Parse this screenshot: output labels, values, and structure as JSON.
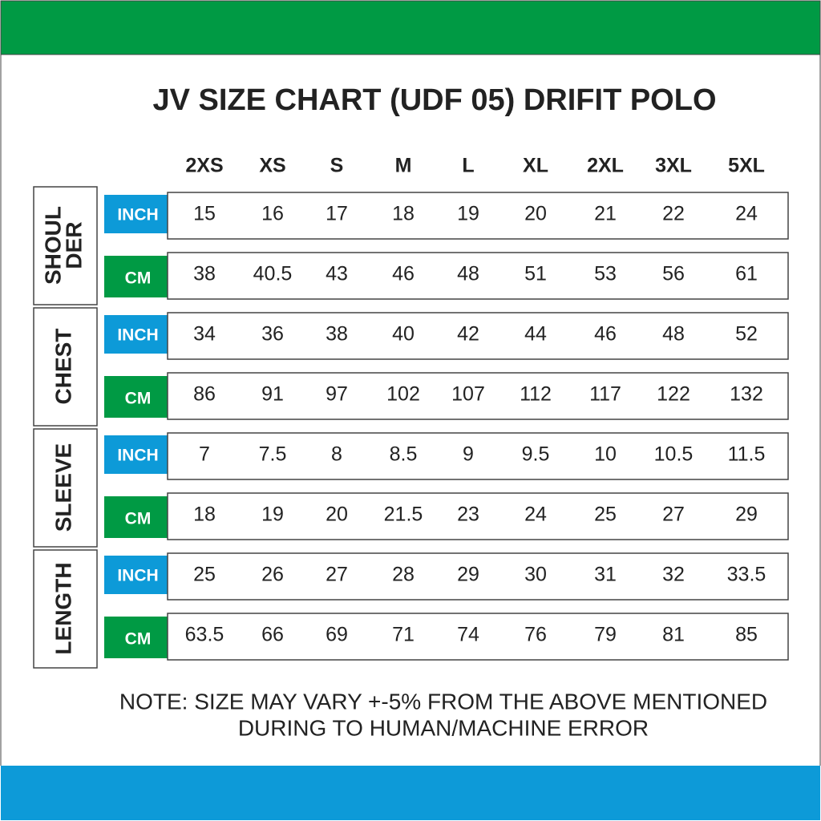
{
  "header": {
    "title": "JV SIZE CHART (UDF 05) DRIFIT POLO"
  },
  "table": {
    "columns": [
      "2XS",
      "XS",
      "S",
      "M",
      "L",
      "XL",
      "2XL",
      "3XL",
      "5XL"
    ],
    "groups": [
      {
        "label_lines": [
          "SHOUL",
          "DER"
        ],
        "rows": [
          {
            "unit": "INCH",
            "values": [
              "15",
              "16",
              "17",
              "18",
              "19",
              "20",
              "21",
              "22",
              "24"
            ]
          },
          {
            "unit": "CM",
            "values": [
              "38",
              "40.5",
              "43",
              "46",
              "48",
              "51",
              "53",
              "56",
              "61"
            ]
          }
        ]
      },
      {
        "label_lines": [
          "CHEST"
        ],
        "rows": [
          {
            "unit": "INCH",
            "values": [
              "34",
              "36",
              "38",
              "40",
              "42",
              "44",
              "46",
              "48",
              "52"
            ]
          },
          {
            "unit": "CM",
            "values": [
              "86",
              "91",
              "97",
              "102",
              "107",
              "112",
              "117",
              "122",
              "132"
            ]
          }
        ]
      },
      {
        "label_lines": [
          "SLEEVE"
        ],
        "rows": [
          {
            "unit": "INCH",
            "values": [
              "7",
              "7.5",
              "8",
              "8.5",
              "9",
              "9.5",
              "10",
              "10.5",
              "11.5"
            ]
          },
          {
            "unit": "CM",
            "values": [
              "18",
              "19",
              "20",
              "21.5",
              "23",
              "24",
              "25",
              "27",
              "29"
            ]
          }
        ]
      },
      {
        "label_lines": [
          "LENGTH"
        ],
        "rows": [
          {
            "unit": "INCH",
            "values": [
              "25",
              "26",
              "27",
              "28",
              "29",
              "30",
              "31",
              "32",
              "33.5"
            ]
          },
          {
            "unit": "CM",
            "values": [
              "63.5",
              "66",
              "69",
              "71",
              "74",
              "76",
              "79",
              "81",
              "85"
            ]
          }
        ]
      }
    ]
  },
  "note": {
    "lines": [
      "NOTE: SIZE MAY VARY +-5% FROM THE ABOVE MENTIONED",
      "DURING TO HUMAN/MACHINE ERROR"
    ]
  }
}
